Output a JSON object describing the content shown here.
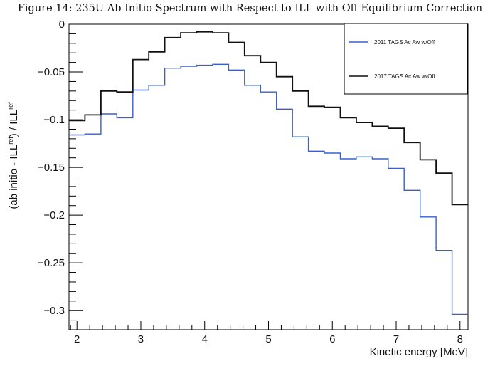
{
  "caption": "Figure 14: 235U Ab Initio Spectrum with Respect to ILL with Off Equilibrium Correction",
  "chart_data": {
    "type": "line",
    "step": true,
    "title": "Figure 14: 235U Ab Initio Spectrum with Respect to ILL with Off Equilibrium Correction",
    "xlabel": "Kinetic energy [MeV]",
    "ylabel_parts": [
      "(ab initio - ILL",
      "ref",
      ") / ILL",
      "ref"
    ],
    "xlim": [
      1.875,
      8.125
    ],
    "ylim": [
      -0.32,
      0.0
    ],
    "x_ticks": [
      2,
      3,
      4,
      5,
      6,
      7,
      8
    ],
    "x_tick_labels": [
      "2",
      "3",
      "4",
      "5",
      "6",
      "7",
      "8"
    ],
    "y_ticks": [
      0,
      -0.05,
      -0.1,
      -0.15,
      -0.2,
      -0.25,
      -0.3
    ],
    "y_tick_labels": [
      "0",
      "−0.05",
      "−0.1",
      "−0.15",
      "−0.2",
      "−0.25",
      "−0.3"
    ],
    "bin_edges": [
      1.875,
      2.125,
      2.375,
      2.625,
      2.875,
      3.125,
      3.375,
      3.625,
      3.875,
      4.125,
      4.375,
      4.625,
      4.875,
      5.125,
      5.375,
      5.625,
      5.875,
      6.125,
      6.375,
      6.625,
      6.875,
      7.125,
      7.375,
      7.625,
      7.875,
      8.125
    ],
    "series": [
      {
        "name": "2011 TAGS Ac Aw w/Off",
        "color": "#3a5fcd",
        "values": [
          -0.116,
          -0.115,
          -0.094,
          -0.098,
          -0.069,
          -0.064,
          -0.046,
          -0.044,
          -0.043,
          -0.042,
          -0.048,
          -0.064,
          -0.071,
          -0.089,
          -0.118,
          -0.133,
          -0.135,
          -0.141,
          -0.139,
          -0.141,
          -0.151,
          -0.174,
          -0.202,
          -0.237,
          -0.304
        ]
      },
      {
        "name": "2017 TAGS Ac Aw w/Off",
        "color": "#111111",
        "values": [
          -0.101,
          -0.095,
          -0.07,
          -0.071,
          -0.037,
          -0.029,
          -0.014,
          -0.009,
          -0.008,
          -0.009,
          -0.019,
          -0.033,
          -0.04,
          -0.055,
          -0.07,
          -0.086,
          -0.087,
          -0.098,
          -0.103,
          -0.107,
          -0.109,
          -0.124,
          -0.142,
          -0.156,
          -0.189
        ]
      }
    ],
    "legend_position": "top-right",
    "grid": false
  }
}
